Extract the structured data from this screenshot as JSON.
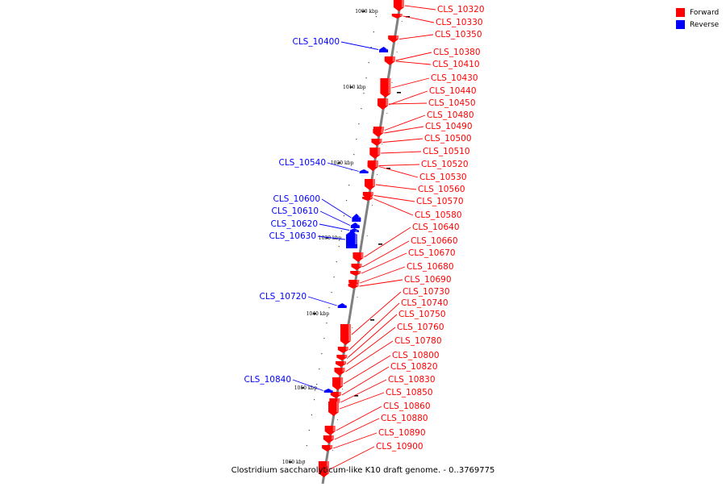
{
  "caption": "Clostridium saccharolyticum-like K10 draft genome. - 0..3769775",
  "legend": [
    {
      "label": "Forward",
      "color": "#ff0000"
    },
    {
      "label": "Reverse",
      "color": "#0000ff"
    }
  ],
  "colors": {
    "forward": "#ff0000",
    "reverse": "#0000ff",
    "backbone": "#808080"
  },
  "ticks": [
    "1000 kbp",
    "1010 kbp",
    "1020 kbp",
    "1030 kbp",
    "1040 kbp",
    "1050 kbp",
    "1060 kbp"
  ],
  "genes": [
    {
      "label": "CLS_10320",
      "strand": "forward"
    },
    {
      "label": "CLS_10330",
      "strand": "forward"
    },
    {
      "label": "CLS_10350",
      "strand": "forward"
    },
    {
      "label": "CLS_10380",
      "strand": "forward"
    },
    {
      "label": "CLS_10400",
      "strand": "reverse"
    },
    {
      "label": "CLS_10410",
      "strand": "forward"
    },
    {
      "label": "CLS_10430",
      "strand": "forward"
    },
    {
      "label": "CLS_10440",
      "strand": "forward"
    },
    {
      "label": "CLS_10450",
      "strand": "forward"
    },
    {
      "label": "CLS_10480",
      "strand": "forward"
    },
    {
      "label": "CLS_10490",
      "strand": "forward"
    },
    {
      "label": "CLS_10500",
      "strand": "forward"
    },
    {
      "label": "CLS_10510",
      "strand": "forward"
    },
    {
      "label": "CLS_10520",
      "strand": "forward"
    },
    {
      "label": "CLS_10530",
      "strand": "forward"
    },
    {
      "label": "CLS_10540",
      "strand": "reverse"
    },
    {
      "label": "CLS_10560",
      "strand": "forward"
    },
    {
      "label": "CLS_10570",
      "strand": "forward"
    },
    {
      "label": "CLS_10580",
      "strand": "forward"
    },
    {
      "label": "CLS_10600",
      "strand": "reverse"
    },
    {
      "label": "CLS_10610",
      "strand": "reverse"
    },
    {
      "label": "CLS_10620",
      "strand": "reverse"
    },
    {
      "label": "CLS_10630",
      "strand": "reverse"
    },
    {
      "label": "CLS_10640",
      "strand": "forward"
    },
    {
      "label": "CLS_10660",
      "strand": "forward"
    },
    {
      "label": "CLS_10670",
      "strand": "forward"
    },
    {
      "label": "CLS_10680",
      "strand": "forward"
    },
    {
      "label": "CLS_10690",
      "strand": "forward"
    },
    {
      "label": "CLS_10720",
      "strand": "reverse"
    },
    {
      "label": "CLS_10730",
      "strand": "forward"
    },
    {
      "label": "CLS_10740",
      "strand": "forward"
    },
    {
      "label": "CLS_10750",
      "strand": "forward"
    },
    {
      "label": "CLS_10760",
      "strand": "forward"
    },
    {
      "label": "CLS_10780",
      "strand": "forward"
    },
    {
      "label": "CLS_10800",
      "strand": "forward"
    },
    {
      "label": "CLS_10820",
      "strand": "forward"
    },
    {
      "label": "CLS_10830",
      "strand": "forward"
    },
    {
      "label": "CLS_10840",
      "strand": "reverse"
    },
    {
      "label": "CLS_10850",
      "strand": "forward"
    },
    {
      "label": "CLS_10860",
      "strand": "forward"
    },
    {
      "label": "CLS_10880",
      "strand": "forward"
    },
    {
      "label": "CLS_10890",
      "strand": "forward"
    },
    {
      "label": "CLS_10900",
      "strand": "forward"
    }
  ]
}
